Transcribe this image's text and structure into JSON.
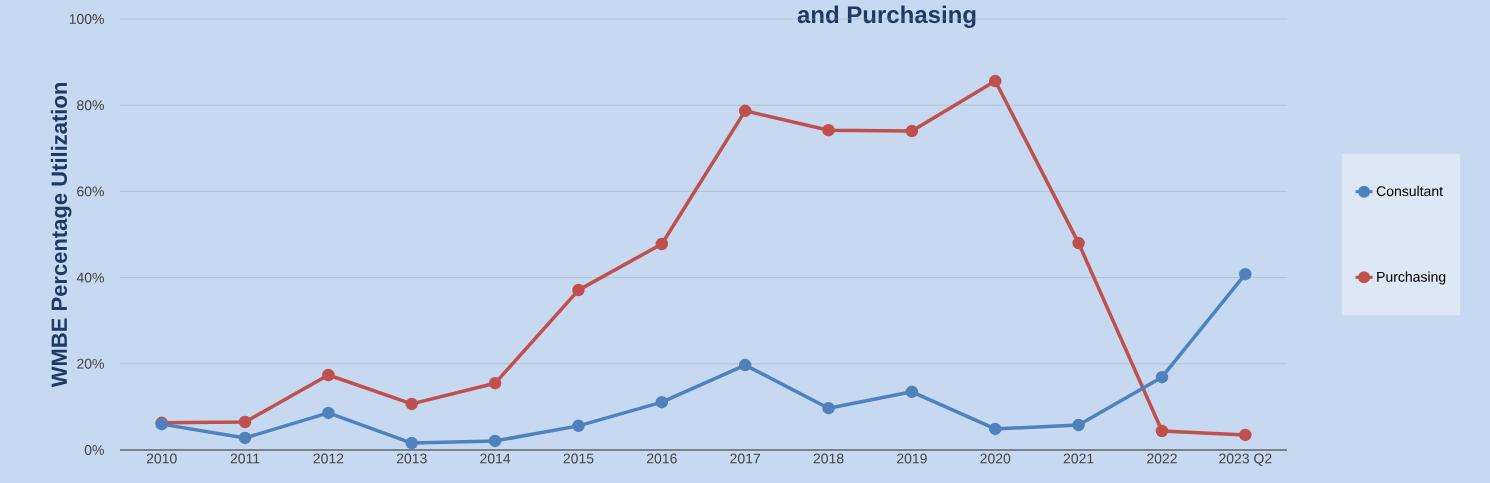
{
  "chart_data": {
    "type": "line",
    "title": "and Purchasing",
    "ylabel": "WMBE Percentage Utilization",
    "categories": [
      "2010",
      "2011",
      "2012",
      "2013",
      "2014",
      "2015",
      "2016",
      "2017",
      "2018",
      "2019",
      "2020",
      "2021",
      "2022",
      "2023 Q2"
    ],
    "series": [
      {
        "name": "Consultant",
        "color": "#4f81bd",
        "values": [
          6.0,
          2.8,
          8.6,
          1.6,
          2.1,
          5.6,
          11.1,
          19.7,
          9.7,
          13.5,
          4.9,
          5.8,
          16.9,
          40.8
        ]
      },
      {
        "name": "Purchasing",
        "color": "#c0504d",
        "values": [
          6.3,
          6.5,
          17.4,
          10.7,
          15.5,
          37.1,
          47.8,
          78.7,
          74.2,
          74.0,
          85.6,
          48.0,
          4.4,
          3.5
        ]
      }
    ],
    "ylim": [
      0,
      100
    ],
    "yticks": [
      {
        "value": 0,
        "label": "0%"
      },
      {
        "value": 20,
        "label": "20%"
      },
      {
        "value": 40,
        "label": "40%"
      },
      {
        "value": 60,
        "label": "60%"
      },
      {
        "value": 80,
        "label": "80%"
      },
      {
        "value": 100,
        "label": "100%"
      }
    ],
    "grid": "y",
    "legend": "right",
    "marker": "circle",
    "line_style": "solid"
  }
}
